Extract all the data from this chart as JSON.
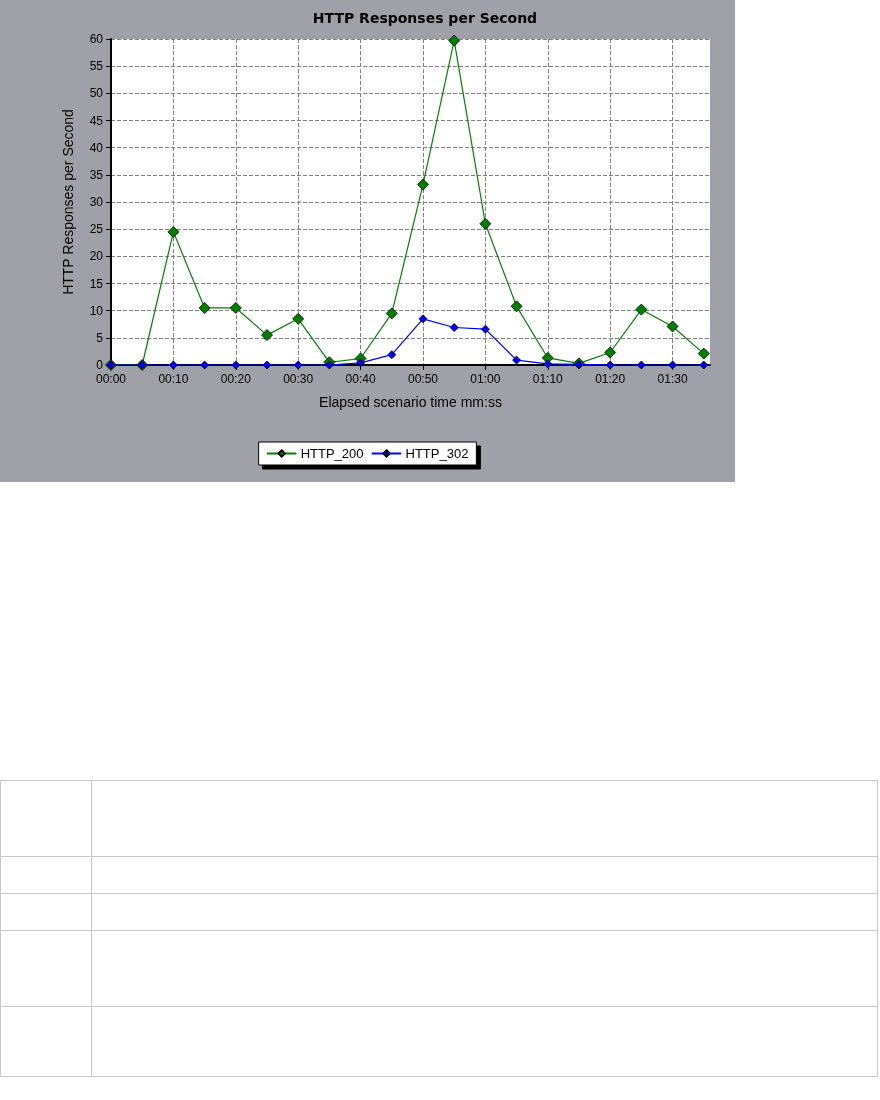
{
  "chart_data": {
    "type": "line",
    "title": "HTTP Responses per Second",
    "xlabel": "Elapsed scenario time mm:ss",
    "ylabel": "HTTP Responses per Second",
    "x": [
      0,
      5,
      10,
      15,
      20,
      25,
      30,
      35,
      40,
      45,
      50,
      55,
      60,
      65,
      70,
      75,
      80,
      85,
      90,
      95
    ],
    "series": [
      {
        "name": "HTTP_200",
        "color": "#008000",
        "values": [
          0,
          0,
          24.5,
          10.5,
          10.5,
          5.5,
          8.5,
          0.5,
          1.2,
          9.5,
          33.2,
          59.7,
          26,
          10.8,
          1.3,
          0.3,
          2.3,
          10.2,
          7.1,
          2.1
        ]
      },
      {
        "name": "HTTP_302",
        "color": "#0000ff",
        "values": [
          0,
          0,
          0,
          0,
          0,
          0,
          0,
          0,
          0.4,
          1.9,
          8.5,
          6.9,
          6.6,
          0.9,
          0.2,
          0.1,
          0,
          0,
          0,
          0
        ]
      }
    ],
    "xlim": [
      0,
      96
    ],
    "xticks": [
      {
        "value": 0,
        "label": "00:00"
      },
      {
        "value": 10,
        "label": "00:10"
      },
      {
        "value": 20,
        "label": "00:20"
      },
      {
        "value": 30,
        "label": "00:30"
      },
      {
        "value": 40,
        "label": "00:40"
      },
      {
        "value": 50,
        "label": "00:50"
      },
      {
        "value": 60,
        "label": "01:00"
      },
      {
        "value": 70,
        "label": "01:10"
      },
      {
        "value": 80,
        "label": "01:20"
      },
      {
        "value": 90,
        "label": "01:30"
      }
    ],
    "ylim": [
      0,
      60
    ],
    "yticks": [
      0,
      5,
      10,
      15,
      20,
      25,
      30,
      35,
      40,
      45,
      50,
      55,
      60
    ],
    "grid": true,
    "legend": "bottom",
    "marker": "diamond",
    "line_style": "solid"
  }
}
